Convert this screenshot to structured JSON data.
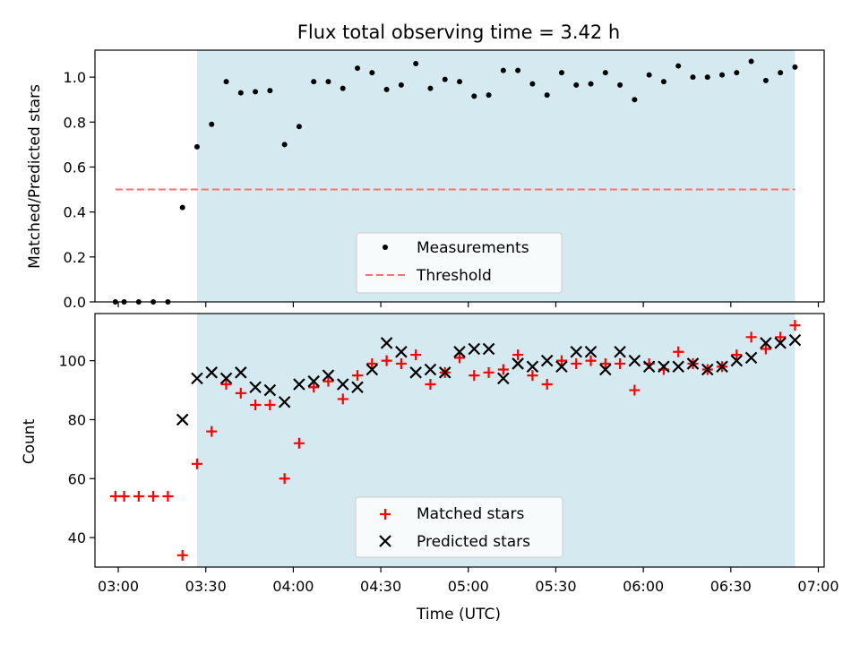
{
  "chart_data": [
    {
      "type": "scatter",
      "title": "Flux total observing time = 3.42 h",
      "xlabel": "",
      "ylabel": "Matched/Predicted stars",
      "xlim": [
        "02:52",
        "07:02"
      ],
      "ylim": [
        0,
        1.12
      ],
      "x_ticks": [
        "03:00",
        "03:30",
        "04:00",
        "04:30",
        "05:00",
        "05:30",
        "06:00",
        "06:30",
        "07:00"
      ],
      "x_tick_labels_visible": false,
      "y_ticks": [
        "0.0",
        "0.2",
        "0.4",
        "0.6",
        "0.8",
        "1.0"
      ],
      "shaded_region": {
        "from": "03:27",
        "to": "06:52",
        "color": "#d4eaf0"
      },
      "legend_position": "lower center",
      "series": [
        {
          "name": "Measurements",
          "marker": "dot",
          "color": "#000000",
          "x": [
            "02:59",
            "03:02",
            "03:07",
            "03:12",
            "03:17",
            "03:22",
            "03:27",
            "03:32",
            "03:37",
            "03:42",
            "03:47",
            "03:52",
            "03:57",
            "04:02",
            "04:07",
            "04:12",
            "04:17",
            "04:22",
            "04:27",
            "04:32",
            "04:37",
            "04:42",
            "04:47",
            "04:52",
            "04:57",
            "05:02",
            "05:07",
            "05:12",
            "05:17",
            "05:22",
            "05:27",
            "05:32",
            "05:37",
            "05:42",
            "05:47",
            "05:52",
            "05:57",
            "06:02",
            "06:07",
            "06:12",
            "06:17",
            "06:22",
            "06:27",
            "06:32",
            "06:37",
            "06:42",
            "06:47",
            "06:52"
          ],
          "y": [
            0.0,
            0.0,
            0.0,
            0.0,
            0.0,
            0.42,
            0.69,
            0.79,
            0.98,
            0.93,
            0.935,
            0.94,
            0.7,
            0.78,
            0.98,
            0.98,
            0.95,
            1.04,
            1.02,
            0.945,
            0.965,
            1.06,
            0.95,
            0.99,
            0.98,
            0.915,
            0.92,
            1.03,
            1.03,
            0.97,
            0.92,
            1.02,
            0.965,
            0.97,
            1.02,
            0.965,
            0.9,
            1.01,
            0.98,
            1.05,
            1.0,
            1.0,
            1.01,
            1.02,
            1.07,
            0.985,
            1.02,
            1.045
          ]
        },
        {
          "name": "Threshold",
          "style": "dashed",
          "color": "#ff7070",
          "x": [
            "02:59",
            "06:52"
          ],
          "y": [
            0.5,
            0.5
          ]
        }
      ]
    },
    {
      "type": "scatter",
      "title": "",
      "xlabel": "Time (UTC)",
      "ylabel": "Count",
      "xlim": [
        "02:52",
        "07:02"
      ],
      "ylim": [
        30,
        116
      ],
      "x_ticks": [
        "03:00",
        "03:30",
        "04:00",
        "04:30",
        "05:00",
        "05:30",
        "06:00",
        "06:30",
        "07:00"
      ],
      "y_ticks": [
        "40",
        "60",
        "80",
        "100"
      ],
      "shaded_region": {
        "from": "03:27",
        "to": "06:52",
        "color": "#d4eaf0"
      },
      "legend_position": "lower center",
      "series": [
        {
          "name": "Matched stars",
          "marker": "plus",
          "color": "#ff0000",
          "x": [
            "02:59",
            "03:02",
            "03:07",
            "03:12",
            "03:17",
            "03:22",
            "03:27",
            "03:32",
            "03:37",
            "03:42",
            "03:47",
            "03:52",
            "03:57",
            "04:02",
            "04:07",
            "04:12",
            "04:17",
            "04:22",
            "04:27",
            "04:32",
            "04:37",
            "04:42",
            "04:47",
            "04:52",
            "04:57",
            "05:02",
            "05:07",
            "05:12",
            "05:17",
            "05:22",
            "05:27",
            "05:32",
            "05:37",
            "05:42",
            "05:47",
            "05:52",
            "05:57",
            "06:02",
            "06:07",
            "06:12",
            "06:17",
            "06:22",
            "06:27",
            "06:32",
            "06:37",
            "06:42",
            "06:47",
            "06:52"
          ],
          "y": [
            54,
            54,
            54,
            54,
            54,
            34,
            65,
            76,
            92,
            89,
            85,
            85,
            60,
            72,
            91,
            93,
            87,
            95,
            99,
            100,
            99,
            102,
            92,
            96,
            101,
            95,
            96,
            97,
            102,
            95,
            92,
            100,
            99,
            100,
            99,
            99,
            90,
            99,
            97,
            103,
            99,
            97,
            98,
            102,
            108,
            104,
            108,
            112
          ]
        },
        {
          "name": "Predicted stars",
          "marker": "x",
          "color": "#000000",
          "x": [
            "03:22",
            "03:27",
            "03:32",
            "03:37",
            "03:42",
            "03:47",
            "03:52",
            "03:57",
            "04:02",
            "04:07",
            "04:12",
            "04:17",
            "04:22",
            "04:27",
            "04:32",
            "04:37",
            "04:42",
            "04:47",
            "04:52",
            "04:57",
            "05:02",
            "05:07",
            "05:12",
            "05:17",
            "05:22",
            "05:27",
            "05:32",
            "05:37",
            "05:42",
            "05:47",
            "05:52",
            "05:57",
            "06:02",
            "06:07",
            "06:12",
            "06:17",
            "06:22",
            "06:27",
            "06:32",
            "06:37",
            "06:42",
            "06:47",
            "06:52"
          ],
          "y": [
            80,
            94,
            96,
            94,
            96,
            91,
            90,
            86,
            92,
            93,
            95,
            92,
            91,
            97,
            106,
            103,
            96,
            97,
            96,
            103,
            104,
            104,
            94,
            99,
            98,
            100,
            98,
            103,
            103,
            97,
            103,
            100,
            98,
            98,
            98,
            99,
            97,
            98,
            100,
            101,
            106,
            106,
            107
          ]
        }
      ]
    }
  ]
}
